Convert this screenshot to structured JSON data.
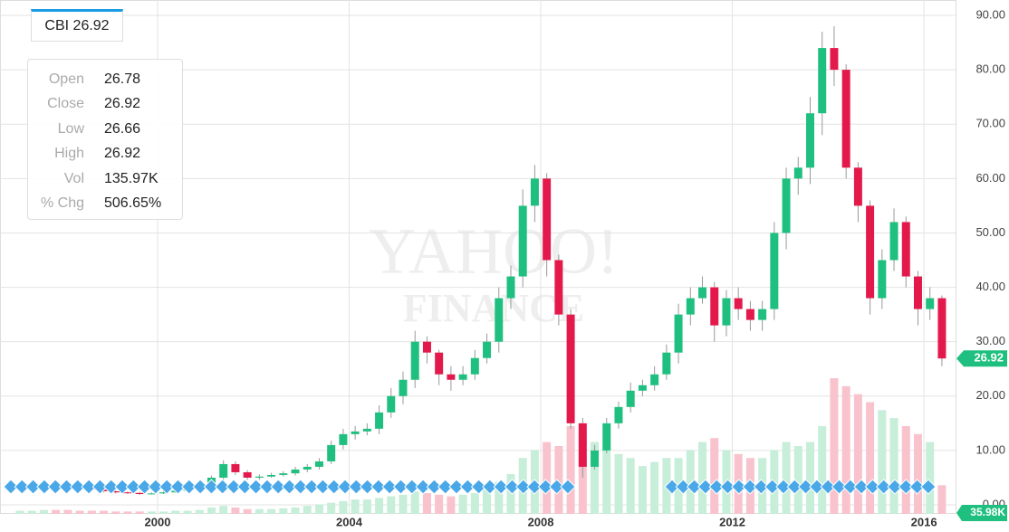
{
  "chart_data": {
    "type": "candlestick",
    "symbol_tab": "CBI 26.92",
    "watermark": [
      "YAHOO!",
      "FINANCE"
    ],
    "info": {
      "labels": [
        "Open",
        "Close",
        "Low",
        "High",
        "Vol",
        "% Chg"
      ],
      "values": [
        "26.78",
        "26.92",
        "26.66",
        "26.92",
        "135.97K",
        "506.65%"
      ]
    },
    "x": [
      1997.0,
      1997.25,
      1997.5,
      1997.75,
      1998.0,
      1998.25,
      1998.5,
      1998.75,
      1999.0,
      1999.25,
      1999.5,
      1999.75,
      2000.0,
      2000.25,
      2000.5,
      2000.75,
      2001.0,
      2001.25,
      2001.5,
      2001.75,
      2002.0,
      2002.25,
      2002.5,
      2002.75,
      2003.0,
      2003.25,
      2003.5,
      2003.75,
      2004.0,
      2004.25,
      2004.5,
      2004.75,
      2005.0,
      2005.25,
      2005.5,
      2005.75,
      2006.0,
      2006.25,
      2006.5,
      2006.75,
      2007.0,
      2007.25,
      2007.5,
      2007.75,
      2008.0,
      2008.25,
      2008.5,
      2008.75,
      2009.0,
      2009.25,
      2009.5,
      2009.75,
      2010.0,
      2010.25,
      2010.5,
      2010.75,
      2011.0,
      2011.25,
      2011.5,
      2011.75,
      2012.0,
      2012.25,
      2012.5,
      2012.75,
      2013.0,
      2013.25,
      2013.5,
      2013.75,
      2014.0,
      2014.25,
      2014.5,
      2014.75,
      2015.0,
      2015.25,
      2015.5,
      2015.75,
      2016.0,
      2016.25
    ],
    "open": [
      3.3,
      3.5,
      3.8,
      4,
      3.6,
      3.2,
      3,
      2.8,
      2.5,
      2.3,
      2.2,
      2,
      2.1,
      2.3,
      2.6,
      2.8,
      3.5,
      5,
      7.5,
      6,
      5,
      5.2,
      5.5,
      5.8,
      6.5,
      7,
      8,
      11,
      13,
      13.5,
      14,
      17,
      20,
      23,
      30,
      28,
      24,
      23,
      24,
      27,
      30,
      38,
      42,
      55,
      60,
      45,
      35,
      15,
      7,
      10,
      15,
      18,
      21,
      22,
      24,
      28,
      35,
      38,
      40,
      33,
      38,
      36,
      34,
      36,
      50,
      60,
      62,
      72,
      84,
      80,
      62,
      55,
      38,
      45,
      52,
      42,
      36,
      38
    ],
    "high": [
      3.9,
      4.1,
      4.3,
      4.3,
      3.9,
      3.4,
      3.2,
      3,
      2.7,
      2.5,
      2.4,
      2.3,
      2.5,
      2.8,
      3,
      3.8,
      5.4,
      8.2,
      8,
      6.4,
      5.6,
      5.9,
      6.2,
      7,
      7.5,
      8.6,
      11.8,
      14,
      14.5,
      15,
      18.3,
      21.5,
      24.5,
      32,
      31,
      28.5,
      25.5,
      25.5,
      28.5,
      31.5,
      40,
      44,
      58,
      62.5,
      61,
      46,
      36,
      16,
      11,
      16,
      19,
      22.5,
      23,
      25.5,
      29.5,
      37,
      40,
      42,
      41,
      39.5,
      40,
      37.5,
      37.5,
      52,
      62,
      64,
      75,
      87,
      88,
      81,
      63,
      56,
      47,
      54.5,
      53,
      43,
      40,
      38.5
    ],
    "low": [
      3,
      3.2,
      3.5,
      3.3,
      2.9,
      2.8,
      2.6,
      2.3,
      2.1,
      2,
      1.8,
      1.9,
      2,
      2.2,
      2.5,
      2.6,
      3.3,
      4.6,
      5.5,
      4.6,
      4.6,
      5,
      5.2,
      5.4,
      6,
      6.5,
      7.5,
      10.2,
      12,
      12.8,
      13,
      16,
      18.5,
      21.5,
      26,
      22,
      21,
      22,
      23,
      26,
      28,
      36,
      40,
      52,
      42,
      33,
      14,
      5,
      6.5,
      9.5,
      14,
      17,
      20,
      21,
      23,
      26,
      33,
      37,
      30,
      31,
      34,
      32,
      32,
      34,
      47,
      57,
      59,
      68,
      77,
      60,
      52,
      35,
      36,
      43,
      40,
      33,
      34,
      25.5
    ],
    "close": [
      3.5,
      3.8,
      4,
      3.6,
      3.2,
      3,
      2.8,
      2.5,
      2.3,
      2.2,
      2,
      2.1,
      2.3,
      2.6,
      2.8,
      3.5,
      5,
      7.5,
      6,
      5,
      5.2,
      5.5,
      5.8,
      6.5,
      7,
      8,
      11,
      13,
      13.5,
      14,
      17,
      20,
      23,
      30,
      28,
      24,
      23,
      24,
      27,
      30,
      38,
      42,
      55,
      60,
      45,
      35,
      15,
      7,
      10,
      15,
      18,
      21,
      22,
      24,
      28,
      35,
      38,
      40,
      33,
      38,
      36,
      34,
      36,
      50,
      60,
      62,
      72,
      84,
      80,
      62,
      55,
      38,
      45,
      52,
      42,
      36,
      38,
      26.92
    ],
    "volume": [
      4,
      4,
      5,
      5,
      5,
      4,
      4,
      4,
      3,
      3,
      3,
      3,
      3,
      4,
      4,
      5,
      8,
      10,
      8,
      6,
      6,
      6,
      7,
      8,
      10,
      12,
      14,
      16,
      18,
      18,
      20,
      22,
      24,
      28,
      26,
      24,
      22,
      24,
      26,
      30,
      40,
      50,
      70,
      80,
      90,
      85,
      110,
      100,
      90,
      80,
      75,
      70,
      60,
      65,
      70,
      70,
      80,
      90,
      95,
      80,
      75,
      70,
      70,
      80,
      90,
      85,
      90,
      110,
      170,
      160,
      150,
      140,
      130,
      120,
      110,
      100,
      90,
      35.98
    ],
    "up_color": "#1fc07f",
    "down_color": "#e3194b",
    "up_volume_color": "#c6eed8",
    "down_volume_color": "#f8c3cd",
    "xlim": [
      1996.71,
      2016.66
    ],
    "xticks": [
      2000,
      2004,
      2008,
      2012,
      2016
    ],
    "ylim": [
      -1.66,
      90
    ],
    "yticks": [
      {
        "value": 0,
        "label": "0.00"
      },
      {
        "value": 10,
        "label": "10.00"
      },
      {
        "value": 20,
        "label": "20.00"
      },
      {
        "value": 30,
        "label": "30.00"
      },
      {
        "value": 40,
        "label": "40.00"
      },
      {
        "value": 50,
        "label": "50.00"
      },
      {
        "value": 60,
        "label": "60.00"
      },
      {
        "value": 70,
        "label": "70.00"
      },
      {
        "value": 80,
        "label": "80.00"
      },
      {
        "value": 90,
        "label": "90.00"
      }
    ],
    "last_price_tag": {
      "value": 26.92,
      "label": "26.92"
    },
    "volume_tag": {
      "value": 35.98,
      "label": "35.98K"
    },
    "grid": true
  }
}
